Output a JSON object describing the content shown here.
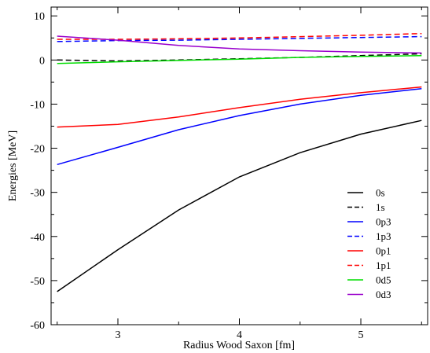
{
  "chart_data": {
    "type": "line",
    "title": "",
    "xlabel": "Radius Wood Saxon [fm]",
    "ylabel": "Energies [MeV]",
    "xlim": [
      2.45,
      5.55
    ],
    "ylim": [
      -60,
      12
    ],
    "xticks": [
      3,
      4,
      5
    ],
    "yticks": [
      10,
      0,
      -10,
      -20,
      -30,
      -40,
      -50,
      -60
    ],
    "grid": false,
    "legend_position": "bottom-right",
    "x": [
      2.5,
      3.0,
      3.5,
      4.0,
      4.5,
      5.0,
      5.5
    ],
    "series": [
      {
        "name": "0s",
        "color": "#000000",
        "dash": "solid",
        "values": [
          -52.5,
          -43.0,
          -34.0,
          -26.5,
          -21.0,
          -16.8,
          -13.7
        ]
      },
      {
        "name": "1s",
        "color": "#000000",
        "dash": "dashed",
        "values": [
          0.0,
          -0.2,
          0.0,
          0.3,
          0.6,
          1.0,
          1.4
        ]
      },
      {
        "name": "0p3",
        "color": "#0000ff",
        "dash": "solid",
        "values": [
          -23.7,
          -19.8,
          -15.8,
          -12.6,
          -10.0,
          -8.0,
          -6.5
        ]
      },
      {
        "name": "1p3",
        "color": "#0000ff",
        "dash": "dashed",
        "values": [
          4.2,
          4.4,
          4.5,
          4.7,
          4.9,
          5.1,
          5.3
        ]
      },
      {
        "name": "0p1",
        "color": "#ff0000",
        "dash": "solid",
        "values": [
          -15.2,
          -14.6,
          -12.9,
          -10.8,
          -8.9,
          -7.4,
          -6.1
        ]
      },
      {
        "name": "1p1",
        "color": "#ff0000",
        "dash": "dashed",
        "values": [
          4.7,
          4.7,
          4.8,
          5.0,
          5.3,
          5.6,
          6.0
        ]
      },
      {
        "name": "0d5",
        "color": "#00dd00",
        "dash": "solid",
        "values": [
          -0.8,
          -0.4,
          -0.1,
          0.2,
          0.6,
          0.8,
          1.0
        ]
      },
      {
        "name": "0d3",
        "color": "#9900cc",
        "dash": "solid",
        "values": [
          5.4,
          4.5,
          3.3,
          2.5,
          2.1,
          1.8,
          1.6
        ]
      }
    ]
  }
}
